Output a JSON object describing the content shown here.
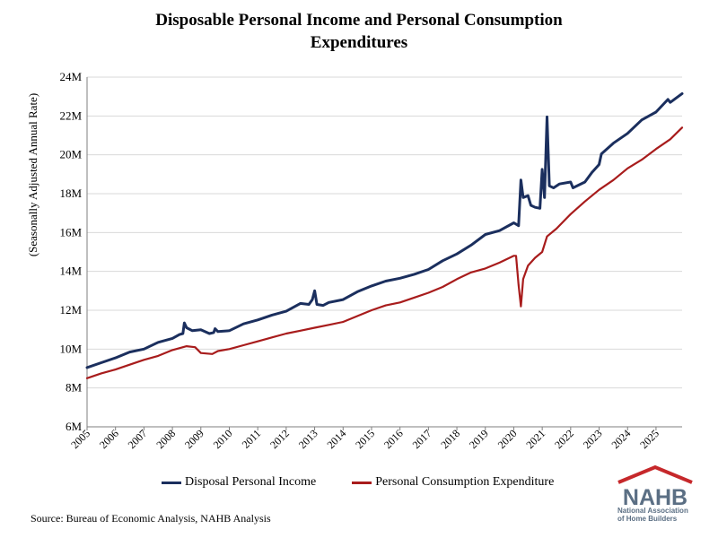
{
  "chart_data": {
    "type": "line",
    "title": "Disposable Personal Income and Personal Consumption Expenditures",
    "title_lines": [
      "Disposable Personal Income and Personal Consumption",
      "Expenditures"
    ],
    "ylabel": "(Seasonally Adjusted Annual Rate)",
    "xlabel": "",
    "ylim": [
      6,
      24
    ],
    "yunit": "M",
    "yticks": [
      "6M",
      "8M",
      "10M",
      "12M",
      "14M",
      "16M",
      "18M",
      "20M",
      "22M",
      "24M"
    ],
    "xticks": [
      "2005",
      "2006",
      "2007",
      "2008",
      "2009",
      "2010",
      "2011",
      "2012",
      "2013",
      "2014",
      "2015",
      "2016",
      "2017",
      "2018",
      "2019",
      "2020",
      "2021",
      "2022",
      "2023",
      "2024",
      "2025"
    ],
    "xlim": [
      2005.0,
      2025.917
    ],
    "grid": "horizontal",
    "legend": "bottom",
    "series": [
      {
        "name": "Disposal Personal Income",
        "color": "#1b2f5e",
        "points": [
          [
            2005.0,
            9.05
          ],
          [
            2005.5,
            9.3
          ],
          [
            2006.0,
            9.55
          ],
          [
            2006.5,
            9.85
          ],
          [
            2007.0,
            10.0
          ],
          [
            2007.5,
            10.35
          ],
          [
            2008.0,
            10.55
          ],
          [
            2008.25,
            10.75
          ],
          [
            2008.37,
            10.8
          ],
          [
            2008.42,
            11.35
          ],
          [
            2008.5,
            11.1
          ],
          [
            2008.7,
            10.95
          ],
          [
            2009.0,
            11.0
          ],
          [
            2009.3,
            10.8
          ],
          [
            2009.45,
            10.85
          ],
          [
            2009.5,
            11.05
          ],
          [
            2009.6,
            10.9
          ],
          [
            2010.0,
            10.95
          ],
          [
            2010.5,
            11.3
          ],
          [
            2011.0,
            11.5
          ],
          [
            2011.5,
            11.75
          ],
          [
            2012.0,
            11.95
          ],
          [
            2012.5,
            12.35
          ],
          [
            2012.8,
            12.3
          ],
          [
            2012.92,
            12.55
          ],
          [
            2013.0,
            13.0
          ],
          [
            2013.08,
            12.3
          ],
          [
            2013.3,
            12.25
          ],
          [
            2013.5,
            12.4
          ],
          [
            2014.0,
            12.55
          ],
          [
            2014.5,
            12.95
          ],
          [
            2015.0,
            13.25
          ],
          [
            2015.5,
            13.5
          ],
          [
            2016.0,
            13.65
          ],
          [
            2016.5,
            13.85
          ],
          [
            2017.0,
            14.1
          ],
          [
            2017.5,
            14.55
          ],
          [
            2018.0,
            14.9
          ],
          [
            2018.5,
            15.35
          ],
          [
            2019.0,
            15.9
          ],
          [
            2019.5,
            16.1
          ],
          [
            2020.0,
            16.5
          ],
          [
            2020.17,
            16.35
          ],
          [
            2020.25,
            18.7
          ],
          [
            2020.33,
            17.8
          ],
          [
            2020.5,
            17.9
          ],
          [
            2020.6,
            17.4
          ],
          [
            2020.75,
            17.3
          ],
          [
            2020.92,
            17.25
          ],
          [
            2021.0,
            19.25
          ],
          [
            2021.08,
            17.8
          ],
          [
            2021.17,
            21.95
          ],
          [
            2021.25,
            18.4
          ],
          [
            2021.4,
            18.3
          ],
          [
            2021.6,
            18.5
          ],
          [
            2022.0,
            18.6
          ],
          [
            2022.08,
            18.3
          ],
          [
            2022.5,
            18.6
          ],
          [
            2022.75,
            19.1
          ],
          [
            2023.0,
            19.5
          ],
          [
            2023.08,
            20.05
          ],
          [
            2023.5,
            20.6
          ],
          [
            2024.0,
            21.1
          ],
          [
            2024.5,
            21.8
          ],
          [
            2025.0,
            22.2
          ],
          [
            2025.42,
            22.85
          ],
          [
            2025.5,
            22.7
          ],
          [
            2025.917,
            23.15
          ]
        ]
      },
      {
        "name": "Personal Consumption Expenditure",
        "color": "#a81c1c",
        "points": [
          [
            2005.0,
            8.5
          ],
          [
            2005.5,
            8.75
          ],
          [
            2006.0,
            8.95
          ],
          [
            2006.5,
            9.2
          ],
          [
            2007.0,
            9.45
          ],
          [
            2007.5,
            9.65
          ],
          [
            2008.0,
            9.95
          ],
          [
            2008.5,
            10.15
          ],
          [
            2008.8,
            10.1
          ],
          [
            2009.0,
            9.8
          ],
          [
            2009.4,
            9.75
          ],
          [
            2009.6,
            9.9
          ],
          [
            2010.0,
            10.0
          ],
          [
            2010.5,
            10.2
          ],
          [
            2011.0,
            10.4
          ],
          [
            2011.5,
            10.6
          ],
          [
            2012.0,
            10.8
          ],
          [
            2012.5,
            10.95
          ],
          [
            2013.0,
            11.1
          ],
          [
            2013.5,
            11.25
          ],
          [
            2014.0,
            11.4
          ],
          [
            2014.5,
            11.7
          ],
          [
            2015.0,
            12.0
          ],
          [
            2015.5,
            12.25
          ],
          [
            2016.0,
            12.4
          ],
          [
            2016.5,
            12.65
          ],
          [
            2017.0,
            12.9
          ],
          [
            2017.5,
            13.2
          ],
          [
            2018.0,
            13.6
          ],
          [
            2018.5,
            13.95
          ],
          [
            2019.0,
            14.15
          ],
          [
            2019.5,
            14.45
          ],
          [
            2020.0,
            14.8
          ],
          [
            2020.08,
            14.8
          ],
          [
            2020.17,
            13.3
          ],
          [
            2020.25,
            12.2
          ],
          [
            2020.33,
            13.6
          ],
          [
            2020.5,
            14.3
          ],
          [
            2020.75,
            14.7
          ],
          [
            2021.0,
            15.0
          ],
          [
            2021.17,
            15.8
          ],
          [
            2021.5,
            16.2
          ],
          [
            2022.0,
            16.95
          ],
          [
            2022.5,
            17.6
          ],
          [
            2023.0,
            18.2
          ],
          [
            2023.5,
            18.7
          ],
          [
            2024.0,
            19.3
          ],
          [
            2024.5,
            19.75
          ],
          [
            2025.0,
            20.3
          ],
          [
            2025.5,
            20.8
          ],
          [
            2025.917,
            21.4
          ]
        ]
      }
    ]
  },
  "source": "Source: Bureau of Economic Analysis, NAHB Analysis",
  "logo": {
    "name": "NAHB",
    "subtitle_lines": [
      "National Association",
      "of Home Builders"
    ],
    "primary_color": "#5b6f84",
    "accent_color": "#c6282b"
  }
}
